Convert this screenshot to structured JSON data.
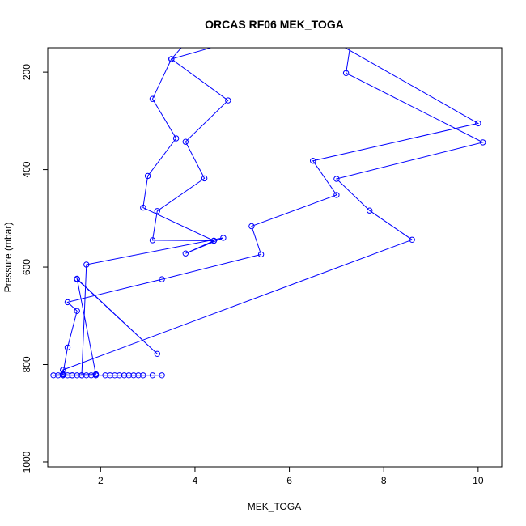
{
  "chart_data": {
    "type": "line",
    "title": "ORCAS RF06 MEK_TOGA",
    "xlabel": "MEK_TOGA",
    "ylabel": "Pressure (mbar)",
    "xlim": [
      0.88,
      10.5
    ],
    "ylim": [
      1010,
      150
    ],
    "y_reversed": true,
    "xticks": [
      2,
      4,
      6,
      8,
      10
    ],
    "yticks": [
      200,
      400,
      600,
      800,
      1000
    ],
    "series_color": "#0000ff",
    "markers": "open-circle",
    "series": [
      {
        "points": [
          [
            3.3,
            822
          ],
          [
            3.1,
            822
          ],
          [
            2.9,
            822
          ],
          [
            2.8,
            822
          ],
          [
            2.7,
            822
          ],
          [
            2.6,
            822
          ],
          [
            2.5,
            822
          ],
          [
            2.4,
            822
          ],
          [
            2.3,
            822
          ],
          [
            2.2,
            822
          ],
          [
            2.1,
            822
          ],
          [
            1.9,
            822
          ],
          [
            1.8,
            822
          ],
          [
            1.7,
            822
          ],
          [
            1.6,
            822
          ],
          [
            1.5,
            822
          ],
          [
            1.4,
            822
          ],
          [
            1.3,
            822
          ],
          [
            1.2,
            822
          ],
          [
            1.1,
            822
          ],
          [
            1.0,
            822
          ],
          [
            1.2,
            820
          ],
          [
            1.4,
            822
          ],
          [
            1.9,
            820
          ],
          [
            1.2,
            822
          ],
          [
            1.2,
            811
          ],
          [
            8.6,
            544
          ],
          [
            7.7,
            484
          ],
          [
            7.0,
            419
          ],
          [
            10.1,
            344
          ],
          [
            7.2,
            202
          ],
          [
            7.3,
            140
          ]
        ]
      },
      {
        "points": [
          [
            1.2,
            820
          ],
          [
            1.3,
            765
          ],
          [
            1.5,
            690
          ],
          [
            1.3,
            672
          ],
          [
            3.3,
            625
          ],
          [
            5.4,
            574
          ],
          [
            5.2,
            516
          ],
          [
            7.0,
            452
          ],
          [
            6.5,
            382
          ],
          [
            10.0,
            305
          ],
          [
            7.0,
            140
          ]
        ]
      },
      {
        "points": [
          [
            1.9,
            820
          ],
          [
            1.5,
            624
          ],
          [
            3.2,
            778
          ],
          [
            1.5,
            625
          ]
        ]
      },
      {
        "points": [
          [
            1.6,
            822
          ],
          [
            1.7,
            595
          ],
          [
            4.6,
            540
          ],
          [
            3.8,
            572
          ],
          [
            4.4,
            546
          ],
          [
            3.1,
            545
          ],
          [
            3.2,
            485
          ],
          [
            4.2,
            418
          ],
          [
            3.8,
            343
          ],
          [
            4.7,
            258
          ],
          [
            3.5,
            173
          ],
          [
            3.8,
            140
          ]
        ]
      },
      {
        "points": [
          [
            4.4,
            546
          ],
          [
            2.9,
            478
          ],
          [
            3.0,
            413
          ],
          [
            3.6,
            336
          ],
          [
            3.1,
            255
          ],
          [
            3.5,
            173
          ],
          [
            4.7,
            140
          ]
        ]
      }
    ]
  }
}
